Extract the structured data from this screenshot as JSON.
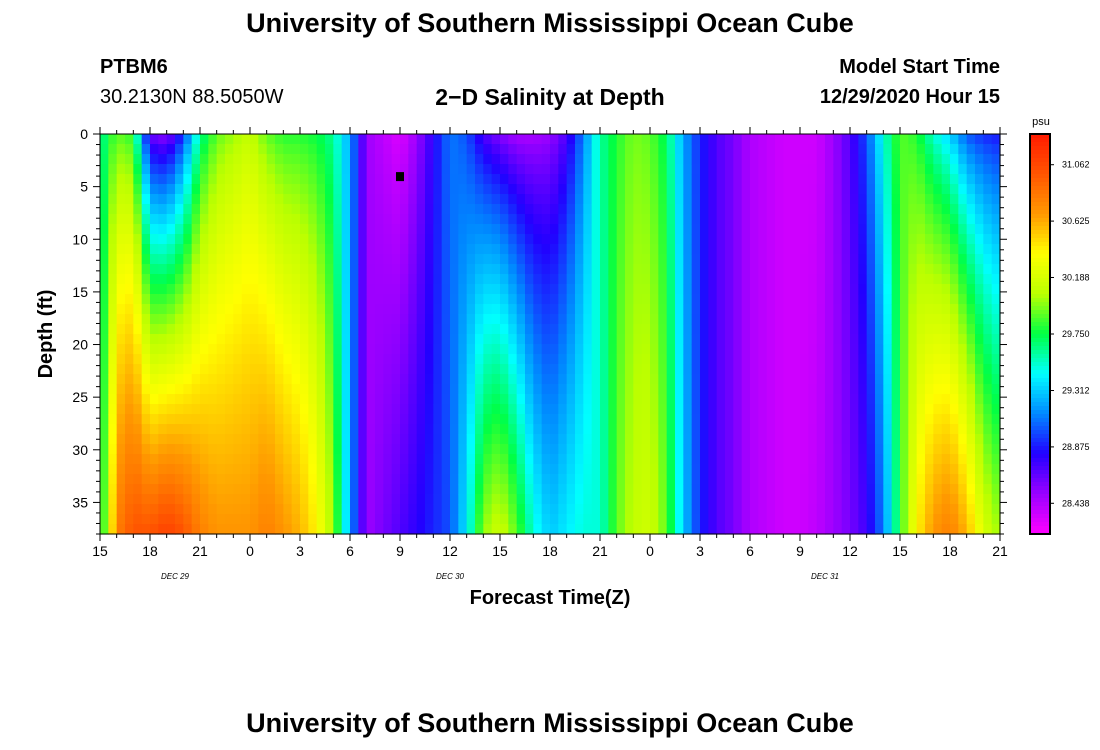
{
  "page": {
    "title_top": "University of Southern Mississippi Ocean Cube",
    "title_bottom": "University of Southern Mississippi Ocean Cube",
    "station_id": "PTBM6",
    "station_coords": "30.2130N 88.5050W",
    "model_start_label": "Model Start Time",
    "model_start_value": "12/29/2020 Hour 15"
  },
  "chart_data": {
    "type": "heatmap",
    "title": "2−D Salinity at Depth",
    "xlabel": "Forecast Time(Z)",
    "ylabel": "Depth (ft)",
    "x_tick_labels": [
      "15",
      "18",
      "21",
      "0",
      "3",
      "6",
      "9",
      "12",
      "15",
      "18",
      "21",
      "0",
      "3",
      "6",
      "9",
      "12",
      "15",
      "18",
      "21"
    ],
    "x_range_hours": [
      0,
      54
    ],
    "date_labels": [
      {
        "text": "DEC 29",
        "hour": 4.5
      },
      {
        "text": "DEC 30",
        "hour": 21
      },
      {
        "text": "DEC 31",
        "hour": 43.5
      }
    ],
    "y_ticks": [
      0,
      5,
      10,
      15,
      20,
      25,
      30,
      35
    ],
    "ylim": [
      38,
      0
    ],
    "colorbar": {
      "unit": "psu",
      "labels": [
        "31.062",
        "30.625",
        "30.188",
        "29.750",
        "29.312",
        "28.875",
        "28.438"
      ],
      "values": [
        31.062,
        30.625,
        30.188,
        29.75,
        29.312,
        28.875,
        28.438
      ],
      "range": [
        28.2,
        31.3
      ],
      "colors": [
        "#ff00ff",
        "#9a00ff",
        "#2200ff",
        "#0088ff",
        "#00ffff",
        "#00ff44",
        "#bbff00",
        "#ffff00",
        "#ff9900",
        "#ff5500",
        "#ff1a00"
      ]
    },
    "marker": {
      "hour": 18,
      "depth": 4
    },
    "profiles": [
      {
        "hour": 0,
        "surface": 29.6,
        "bottom": 29.6
      },
      {
        "hour": 1,
        "surface": 29.9,
        "bottom": 30.8
      },
      {
        "hour": 2,
        "surface": 29.8,
        "bottom": 31.0
      },
      {
        "hour": 3,
        "surface": 28.6,
        "bottom": 31.0
      },
      {
        "hour": 4,
        "surface": 28.5,
        "bottom": 31.1
      },
      {
        "hour": 5,
        "surface": 28.9,
        "bottom": 31.0
      },
      {
        "hour": 6,
        "surface": 29.6,
        "bottom": 30.8
      },
      {
        "hour": 7,
        "surface": 29.9,
        "bottom": 30.7
      },
      {
        "hour": 8,
        "surface": 30.0,
        "bottom": 30.7
      },
      {
        "hour": 9,
        "surface": 30.1,
        "bottom": 30.7
      },
      {
        "hour": 10,
        "surface": 29.9,
        "bottom": 30.8
      },
      {
        "hour": 11,
        "surface": 29.8,
        "bottom": 30.7
      },
      {
        "hour": 12,
        "surface": 29.8,
        "bottom": 30.6
      },
      {
        "hour": 13,
        "surface": 29.75,
        "bottom": 30.4
      },
      {
        "hour": 14,
        "surface": 29.6,
        "bottom": 30.0
      },
      {
        "hour": 15,
        "surface": 29.2,
        "bottom": 29.2
      },
      {
        "hour": 16,
        "surface": 28.5,
        "bottom": 28.5
      },
      {
        "hour": 17,
        "surface": 28.4,
        "bottom": 28.6
      },
      {
        "hour": 18,
        "surface": 28.3,
        "bottom": 28.7
      },
      {
        "hour": 19,
        "surface": 28.5,
        "bottom": 28.8
      },
      {
        "hour": 20,
        "surface": 28.8,
        "bottom": 28.9
      },
      {
        "hour": 21,
        "surface": 29.1,
        "bottom": 29.0
      },
      {
        "hour": 22,
        "surface": 29.0,
        "bottom": 29.4
      },
      {
        "hour": 23,
        "surface": 28.7,
        "bottom": 30.0
      },
      {
        "hour": 24,
        "surface": 28.55,
        "bottom": 30.15
      },
      {
        "hour": 25,
        "surface": 28.45,
        "bottom": 29.9
      },
      {
        "hour": 26,
        "surface": 28.45,
        "bottom": 29.5
      },
      {
        "hour": 27,
        "surface": 28.5,
        "bottom": 29.3
      },
      {
        "hour": 28,
        "surface": 28.7,
        "bottom": 29.4
      },
      {
        "hour": 29,
        "surface": 29.1,
        "bottom": 29.5
      },
      {
        "hour": 30,
        "surface": 29.6,
        "bottom": 29.5
      },
      {
        "hour": 31,
        "surface": 29.8,
        "bottom": 29.9
      },
      {
        "hour": 32,
        "surface": 29.95,
        "bottom": 30.1
      },
      {
        "hour": 33,
        "surface": 29.9,
        "bottom": 30.15
      },
      {
        "hour": 34,
        "surface": 29.7,
        "bottom": 29.9
      },
      {
        "hour": 35,
        "surface": 29.2,
        "bottom": 29.3
      },
      {
        "hour": 36,
        "surface": 28.9,
        "bottom": 28.9
      },
      {
        "hour": 37,
        "surface": 28.7,
        "bottom": 28.7
      },
      {
        "hour": 38,
        "surface": 28.6,
        "bottom": 28.6
      },
      {
        "hour": 39,
        "surface": 28.45,
        "bottom": 28.45
      },
      {
        "hour": 40,
        "surface": 28.4,
        "bottom": 28.4
      },
      {
        "hour": 41,
        "surface": 28.35,
        "bottom": 28.35
      },
      {
        "hour": 42,
        "surface": 28.35,
        "bottom": 28.35
      },
      {
        "hour": 43,
        "surface": 28.35,
        "bottom": 28.4
      },
      {
        "hour": 44,
        "surface": 28.5,
        "bottom": 28.5
      },
      {
        "hour": 45,
        "surface": 28.7,
        "bottom": 28.6
      },
      {
        "hour": 46,
        "surface": 29.0,
        "bottom": 28.75
      },
      {
        "hour": 47,
        "surface": 29.5,
        "bottom": 29.1
      },
      {
        "hour": 48,
        "surface": 29.9,
        "bottom": 29.8
      },
      {
        "hour": 49,
        "surface": 29.8,
        "bottom": 30.4
      },
      {
        "hour": 50,
        "surface": 29.5,
        "bottom": 30.7
      },
      {
        "hour": 51,
        "surface": 29.3,
        "bottom": 30.8
      },
      {
        "hour": 52,
        "surface": 29.0,
        "bottom": 30.6
      },
      {
        "hour": 53,
        "surface": 28.9,
        "bottom": 30.2
      },
      {
        "hour": 54,
        "surface": 28.85,
        "bottom": 30.0
      }
    ]
  }
}
